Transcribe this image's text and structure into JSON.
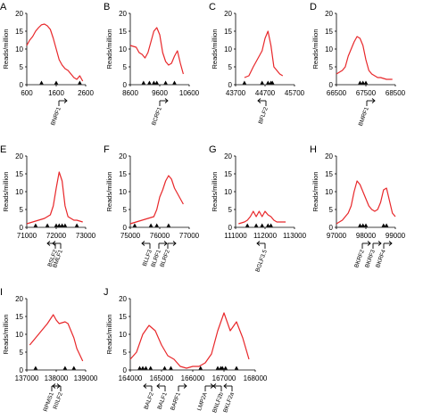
{
  "chart_data": [
    {
      "panel": "A",
      "type": "line",
      "ylabel": "Reads/million",
      "xlim": [
        600,
        2600
      ],
      "ylim": [
        0,
        20
      ],
      "xticks": [
        "600",
        "1600",
        "2600"
      ],
      "yticks": [
        "0",
        "5",
        "10",
        "15",
        "20"
      ],
      "color": "#e8272a",
      "x": [
        600,
        700,
        800,
        900,
        1000,
        1100,
        1200,
        1300,
        1400,
        1500,
        1600,
        1700,
        1800,
        1900,
        2000,
        2100,
        2200,
        2300,
        2400,
        2500
      ],
      "y": [
        11,
        12.5,
        13.5,
        15,
        16,
        16.8,
        17,
        16.5,
        15.5,
        13,
        10,
        7,
        5.5,
        4.5,
        4,
        3,
        2,
        1.5,
        2.5,
        1
      ],
      "markers": [
        1100,
        1600,
        2400
      ],
      "genes": [
        {
          "name": "BNRF1",
          "dir": "right"
        }
      ]
    },
    {
      "panel": "B",
      "type": "line",
      "ylabel": "Reads/million",
      "xlim": [
        8600,
        10600
      ],
      "ylim": [
        0,
        20
      ],
      "xticks": [
        "8600",
        "9600",
        "10600"
      ],
      "yticks": [
        "0",
        "5",
        "10",
        "15",
        "20"
      ],
      "color": "#e8272a",
      "x": [
        8600,
        8800,
        8900,
        9000,
        9100,
        9200,
        9300,
        9400,
        9500,
        9600,
        9700,
        9800,
        9900,
        10000,
        10100,
        10200,
        10300,
        10400
      ],
      "y": [
        11,
        10.5,
        9,
        8.5,
        7.5,
        9,
        12,
        15,
        16,
        14,
        9,
        6.5,
        5.5,
        6,
        8,
        9.5,
        6,
        3
      ],
      "markers": [
        9050,
        9250,
        9400,
        9500,
        9800,
        10100
      ],
      "genes": [
        {
          "name": "BCRF1",
          "dir": "right"
        }
      ]
    },
    {
      "panel": "C",
      "type": "line",
      "ylabel": "Reads/million",
      "xlim": [
        43700,
        45700
      ],
      "ylim": [
        0,
        20
      ],
      "xticks": [
        "43700",
        "44700",
        "45700"
      ],
      "yticks": [
        "0",
        "5",
        "10",
        "15",
        "20"
      ],
      "color": "#e8272a",
      "x": [
        44000,
        44150,
        44300,
        44400,
        44500,
        44600,
        44700,
        44800,
        44900,
        45000,
        45100,
        45200,
        45300
      ],
      "y": [
        2,
        2.5,
        5,
        6.5,
        8,
        9.5,
        13,
        15,
        11,
        5,
        4,
        3,
        2.5
      ],
      "markers": [
        44000,
        44600,
        44800,
        44900,
        44950
      ],
      "genes": [
        {
          "name": "BFLF2",
          "dir": "left"
        }
      ]
    },
    {
      "panel": "D",
      "type": "line",
      "ylabel": "Reads/million",
      "xlim": [
        66500,
        68500
      ],
      "ylim": [
        0,
        20
      ],
      "xticks": [
        "66500",
        "67500",
        "68500"
      ],
      "yticks": [
        "0",
        "5",
        "10",
        "15",
        "20"
      ],
      "color": "#e8272a",
      "x": [
        66500,
        66700,
        66800,
        66900,
        67000,
        67100,
        67200,
        67300,
        67400,
        67500,
        67600,
        67700,
        67800,
        67900,
        68000,
        68200,
        68400
      ],
      "y": [
        3,
        4,
        5,
        8,
        10,
        12,
        13.5,
        13,
        11,
        7,
        4,
        3,
        2.5,
        2,
        2,
        1.5,
        1.5
      ],
      "markers": [
        67300,
        67400,
        67500
      ],
      "genes": [
        {
          "name": "BMRF1",
          "dir": "right"
        }
      ]
    },
    {
      "panel": "E",
      "type": "line",
      "ylabel": "Reads/million",
      "xlim": [
        71000,
        73000
      ],
      "ylim": [
        0,
        20
      ],
      "xticks": [
        "71000",
        "72000",
        "73000"
      ],
      "yticks": [
        "0",
        "5",
        "10",
        "15",
        "20"
      ],
      "color": "#e8272a",
      "x": [
        71000,
        71200,
        71400,
        71600,
        71800,
        71900,
        72000,
        72100,
        72200,
        72300,
        72400,
        72500,
        72600,
        72700,
        72900
      ],
      "y": [
        1,
        1.5,
        2,
        2.5,
        3.5,
        6,
        11,
        15.5,
        13,
        6,
        3,
        2.5,
        2,
        2,
        1.5
      ],
      "markers": [
        71300,
        71700,
        72000,
        72100,
        72200,
        72300,
        72700
      ],
      "genes": [
        {
          "name": "BSLF2",
          "dir": "left"
        },
        {
          "name": "BMLF1",
          "dir": "left"
        }
      ]
    },
    {
      "panel": "F",
      "type": "line",
      "ylabel": "Reads/million",
      "xlim": [
        75000,
        77000
      ],
      "ylim": [
        0,
        20
      ],
      "xticks": [
        "75000",
        "76000",
        "77000"
      ],
      "yticks": [
        "0",
        "5",
        "10",
        "15",
        "20"
      ],
      "color": "#e8272a",
      "x": [
        75000,
        75200,
        75400,
        75600,
        75800,
        75900,
        76000,
        76100,
        76200,
        76300,
        76400,
        76500,
        76600,
        76700,
        76800
      ],
      "y": [
        1,
        1.5,
        2,
        2.5,
        3,
        5,
        8.5,
        10.5,
        13,
        14.5,
        13.5,
        11,
        9.5,
        8,
        6.5
      ],
      "markers": [
        75150,
        75700,
        75900,
        76300
      ],
      "genes": [
        {
          "name": "BLLF3",
          "dir": "left"
        },
        {
          "name": "BLRF1",
          "dir": "right"
        },
        {
          "name": "BLRF2",
          "dir": "right"
        }
      ]
    },
    {
      "panel": "G",
      "type": "line",
      "ylabel": "Reads/million",
      "xlim": [
        111000,
        113000
      ],
      "ylim": [
        0,
        20
      ],
      "xticks": [
        "111000",
        "112000",
        "113000"
      ],
      "yticks": [
        "0",
        "5",
        "10",
        "15",
        "20"
      ],
      "color": "#e8272a",
      "x": [
        111100,
        111300,
        111400,
        111500,
        111600,
        111700,
        111800,
        111900,
        112000,
        112100,
        112200,
        112300,
        112400,
        112500,
        112700
      ],
      "y": [
        1,
        1.5,
        2,
        3,
        4.5,
        3,
        4.5,
        3,
        4.5,
        3.5,
        3,
        2,
        1.5,
        1.5,
        1.5
      ],
      "markers": [
        111400,
        111700,
        111900,
        112100,
        112200
      ],
      "genes": [
        {
          "name": "BGLF3.5",
          "dir": "left"
        }
      ]
    },
    {
      "panel": "H",
      "type": "line",
      "ylabel": "Reads/million",
      "xlim": [
        97000,
        99000
      ],
      "ylim": [
        0,
        20
      ],
      "xticks": [
        "97000",
        "98000",
        "99000"
      ],
      "yticks": [
        "0",
        "5",
        "10",
        "15",
        "20"
      ],
      "color": "#e8272a",
      "x": [
        97000,
        97200,
        97400,
        97500,
        97600,
        97700,
        97800,
        97900,
        98000,
        98100,
        98200,
        98300,
        98400,
        98500,
        98600,
        98700,
        98800,
        98900,
        99000
      ],
      "y": [
        1,
        2,
        4,
        6,
        10,
        13,
        12,
        10,
        8,
        6,
        5,
        4.5,
        5,
        7,
        10.5,
        11,
        7.5,
        4,
        3
      ],
      "markers": [
        97800,
        97900,
        98000,
        98600,
        98700
      ],
      "genes": [
        {
          "name": "BKRF2",
          "dir": "right"
        },
        {
          "name": "BKRF3",
          "dir": "right"
        },
        {
          "name": "BKRF4",
          "dir": "right"
        }
      ]
    },
    {
      "panel": "I",
      "type": "line",
      "ylabel": "Reads/million",
      "xlim": [
        137000,
        139000
      ],
      "ylim": [
        0,
        20
      ],
      "xticks": [
        "137000",
        "138000",
        "139000"
      ],
      "yticks": [
        "0",
        "5",
        "10",
        "15",
        "20"
      ],
      "color": "#e8272a",
      "x": [
        137100,
        137300,
        137500,
        137700,
        137900,
        138000,
        138100,
        138300,
        138400,
        138500,
        138600,
        138700,
        138900
      ],
      "y": [
        7,
        9,
        11,
        13,
        15.5,
        14,
        13,
        13.5,
        13,
        11,
        9,
        6,
        2.5
      ],
      "markers": [
        137300,
        138300,
        138600
      ],
      "genes": [
        {
          "name": "RPMS1",
          "dir": "right"
        },
        {
          "name": "RIILF2",
          "dir": "left"
        }
      ]
    },
    {
      "panel": "J",
      "type": "line",
      "ylabel": "Reads/million",
      "xlim": [
        164000,
        168000
      ],
      "ylim": [
        0,
        20
      ],
      "xticks": [
        "164000",
        "165000",
        "166000",
        "167000",
        "168000"
      ],
      "yticks": [
        "0",
        "5",
        "10",
        "15",
        "20"
      ],
      "color": "#e8272a",
      "x": [
        164000,
        164200,
        164400,
        164600,
        164800,
        165000,
        165200,
        165400,
        165600,
        165800,
        166000,
        166200,
        166400,
        166600,
        166800,
        167000,
        167200,
        167400,
        167600,
        167800
      ],
      "y": [
        3,
        5,
        10,
        12.5,
        11,
        7,
        4,
        3,
        1,
        0.5,
        1,
        1,
        2,
        4.5,
        11,
        16,
        11,
        13.5,
        9,
        3
      ],
      "markers": [
        164300,
        164400,
        164500,
        164650,
        165100,
        165300,
        166250,
        166800,
        166900,
        166950,
        167050,
        167400
      ],
      "genes": [
        {
          "name": "BALF2",
          "dir": "left"
        },
        {
          "name": "BALF1",
          "dir": "left"
        },
        {
          "name": "BARF1",
          "dir": "right"
        },
        {
          "name": "LMP2A",
          "dir": "right"
        },
        {
          "name": "BNLF2b",
          "dir": "left"
        },
        {
          "name": "BKLF2a",
          "dir": "left"
        }
      ]
    }
  ]
}
